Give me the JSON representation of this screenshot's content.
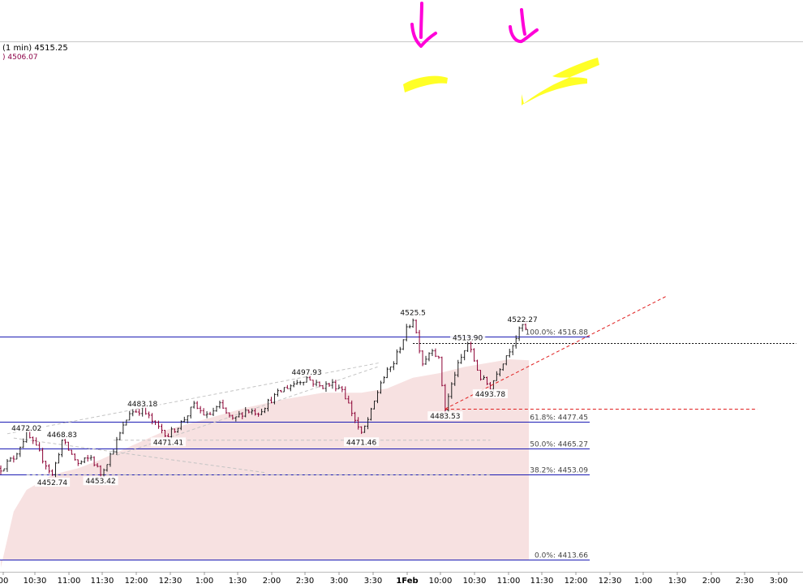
{
  "header": {
    "interval_price": "(1 min) 4515.25",
    "ma_value": ") 4506.07"
  },
  "chart_data": {
    "type": "candlestick",
    "ylim": [
      4409,
      4535
    ],
    "x_ticks": [
      "00",
      "10:30",
      "11:00",
      "11:30",
      "12:00",
      "12:30",
      "1:00",
      "1:30",
      "2:00",
      "2:30",
      "3:00",
      "3:30",
      "1Feb",
      "10:00",
      "10:30",
      "11:00",
      "11:30",
      "12:00",
      "12:30",
      "1:00",
      "1:30",
      "2:00",
      "2:30",
      "3:00"
    ],
    "fib_levels": [
      {
        "label": "100.0%: 4516.88",
        "value": 4516.88
      },
      {
        "label": "61.8%: 4477.45",
        "value": 4477.45
      },
      {
        "label": "50.0%: 4465.27",
        "value": 4465.27
      },
      {
        "label": "38.2%: 4453.09",
        "value": 4453.09
      },
      {
        "label": "0.0%: 4413.66",
        "value": 4413.66
      }
    ],
    "price_labels": [
      {
        "label": "4472.02",
        "value": 4472.02,
        "slot": 8
      },
      {
        "label": "4468.83",
        "value": 4468.83,
        "slot": 19
      },
      {
        "label": "4452.74",
        "value": 4452.74,
        "slot": 16
      },
      {
        "label": "4453.42",
        "value": 4453.42,
        "slot": 31
      },
      {
        "label": "4483.18",
        "value": 4483.18,
        "slot": 44
      },
      {
        "label": "4471.41",
        "value": 4471.41,
        "slot": 52
      },
      {
        "label": "4497.93",
        "value": 4497.93,
        "slot": 95
      },
      {
        "label": "4471.46",
        "value": 4471.46,
        "slot": 112
      },
      {
        "label": "4525.5",
        "value": 4525.5,
        "slot": 128
      },
      {
        "label": "4513.90",
        "value": 4513.9,
        "slot": 145
      },
      {
        "label": "4483.53",
        "value": 4483.53,
        "slot": 138
      },
      {
        "label": "4493.78",
        "value": 4493.78,
        "slot": 152
      },
      {
        "label": "4522.27",
        "value": 4522.27,
        "slot": 162
      }
    ],
    "pivots": [
      [
        0,
        4456
      ],
      [
        4,
        4461
      ],
      [
        8,
        4472.02
      ],
      [
        12,
        4463
      ],
      [
        16,
        4452.74
      ],
      [
        19,
        4468.83
      ],
      [
        24,
        4458
      ],
      [
        28,
        4461
      ],
      [
        31,
        4453.42
      ],
      [
        35,
        4465
      ],
      [
        40,
        4482
      ],
      [
        44,
        4483.18
      ],
      [
        48,
        4476
      ],
      [
        52,
        4471.41
      ],
      [
        56,
        4477
      ],
      [
        60,
        4485
      ],
      [
        64,
        4480
      ],
      [
        68,
        4485
      ],
      [
        72,
        4478
      ],
      [
        76,
        4483
      ],
      [
        80,
        4482
      ],
      [
        84,
        4488
      ],
      [
        88,
        4493
      ],
      [
        92,
        4496
      ],
      [
        95,
        4497.93
      ],
      [
        99,
        4494
      ],
      [
        103,
        4495
      ],
      [
        106,
        4493
      ],
      [
        109,
        4482
      ],
      [
        112,
        4471.46
      ],
      [
        115,
        4482
      ],
      [
        118,
        4496
      ],
      [
        122,
        4505
      ],
      [
        126,
        4520
      ],
      [
        128,
        4525.5
      ],
      [
        131,
        4505
      ],
      [
        134,
        4512
      ],
      [
        136,
        4506
      ],
      [
        138,
        4483.53
      ],
      [
        141,
        4500
      ],
      [
        145,
        4513.9
      ],
      [
        149,
        4498
      ],
      [
        152,
        4493.78
      ],
      [
        155,
        4503
      ],
      [
        159,
        4514
      ],
      [
        162,
        4522.27
      ],
      [
        164,
        4518
      ]
    ],
    "ma_curve": [
      [
        0,
        4410
      ],
      [
        4,
        4436
      ],
      [
        8,
        4446
      ],
      [
        16,
        4453
      ],
      [
        24,
        4456
      ],
      [
        31,
        4460
      ],
      [
        40,
        4466
      ],
      [
        52,
        4474
      ],
      [
        64,
        4479
      ],
      [
        76,
        4484
      ],
      [
        88,
        4488
      ],
      [
        100,
        4491
      ],
      [
        112,
        4491
      ],
      [
        120,
        4493
      ],
      [
        128,
        4498
      ],
      [
        136,
        4500
      ],
      [
        144,
        4503
      ],
      [
        152,
        4505
      ],
      [
        158,
        4506.5
      ],
      [
        164,
        4506.07
      ]
    ],
    "dashed_horizontal": [
      {
        "value": 4513.9,
        "from_slot": 128,
        "to_slot": 247
      },
      {
        "value": 4483.53,
        "from_slot": 138,
        "to_slot": 235
      }
    ],
    "trendline": {
      "from": [
        138,
        4483.53
      ],
      "to": [
        207,
        4536
      ]
    }
  }
}
